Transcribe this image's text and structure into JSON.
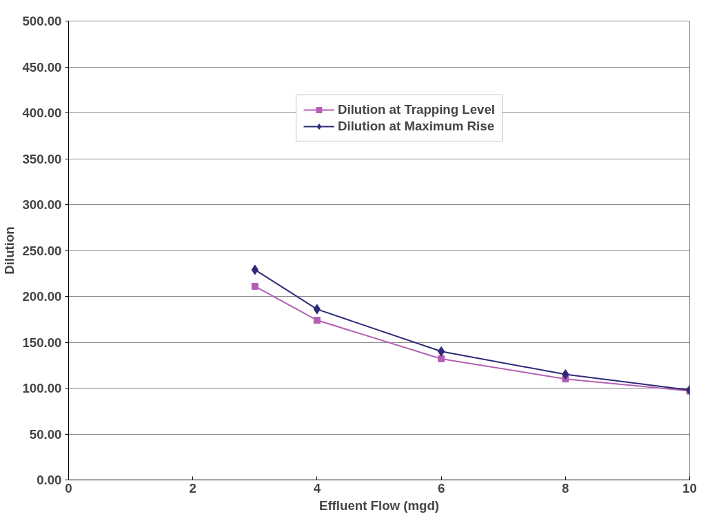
{
  "chart_data": {
    "type": "line",
    "xlabel": "Effluent Flow (mgd)",
    "ylabel": "Dilution",
    "x": [
      3,
      4,
      6,
      8,
      10
    ],
    "series": [
      {
        "name": "Dilution at Trapping Level",
        "color": "#b45fb4",
        "marker": "square",
        "values": [
          211,
          174,
          132,
          110,
          97
        ]
      },
      {
        "name": "Dilution at Maximum Rise",
        "color": "#2e2a78",
        "marker": "diamond",
        "values": [
          229,
          186,
          140,
          115,
          98
        ]
      }
    ],
    "xlim": [
      0,
      10
    ],
    "xticks": [
      0,
      2,
      4,
      6,
      8,
      10
    ],
    "ylim": [
      0,
      500
    ],
    "yticks": [
      {
        "value": 0,
        "label": "0.00"
      },
      {
        "value": 50,
        "label": "50.00"
      },
      {
        "value": 100,
        "label": "100.00"
      },
      {
        "value": 150,
        "label": "150.00"
      },
      {
        "value": 200,
        "label": "200.00"
      },
      {
        "value": 250,
        "label": "250.00"
      },
      {
        "value": 300,
        "label": "300.00"
      },
      {
        "value": 350,
        "label": "350.00"
      },
      {
        "value": 400,
        "label": "400.00"
      },
      {
        "value": 450,
        "label": "450.00"
      },
      {
        "value": 500,
        "label": "500.00"
      }
    ],
    "grid": "y",
    "legend": "top",
    "line_style": "solid"
  }
}
